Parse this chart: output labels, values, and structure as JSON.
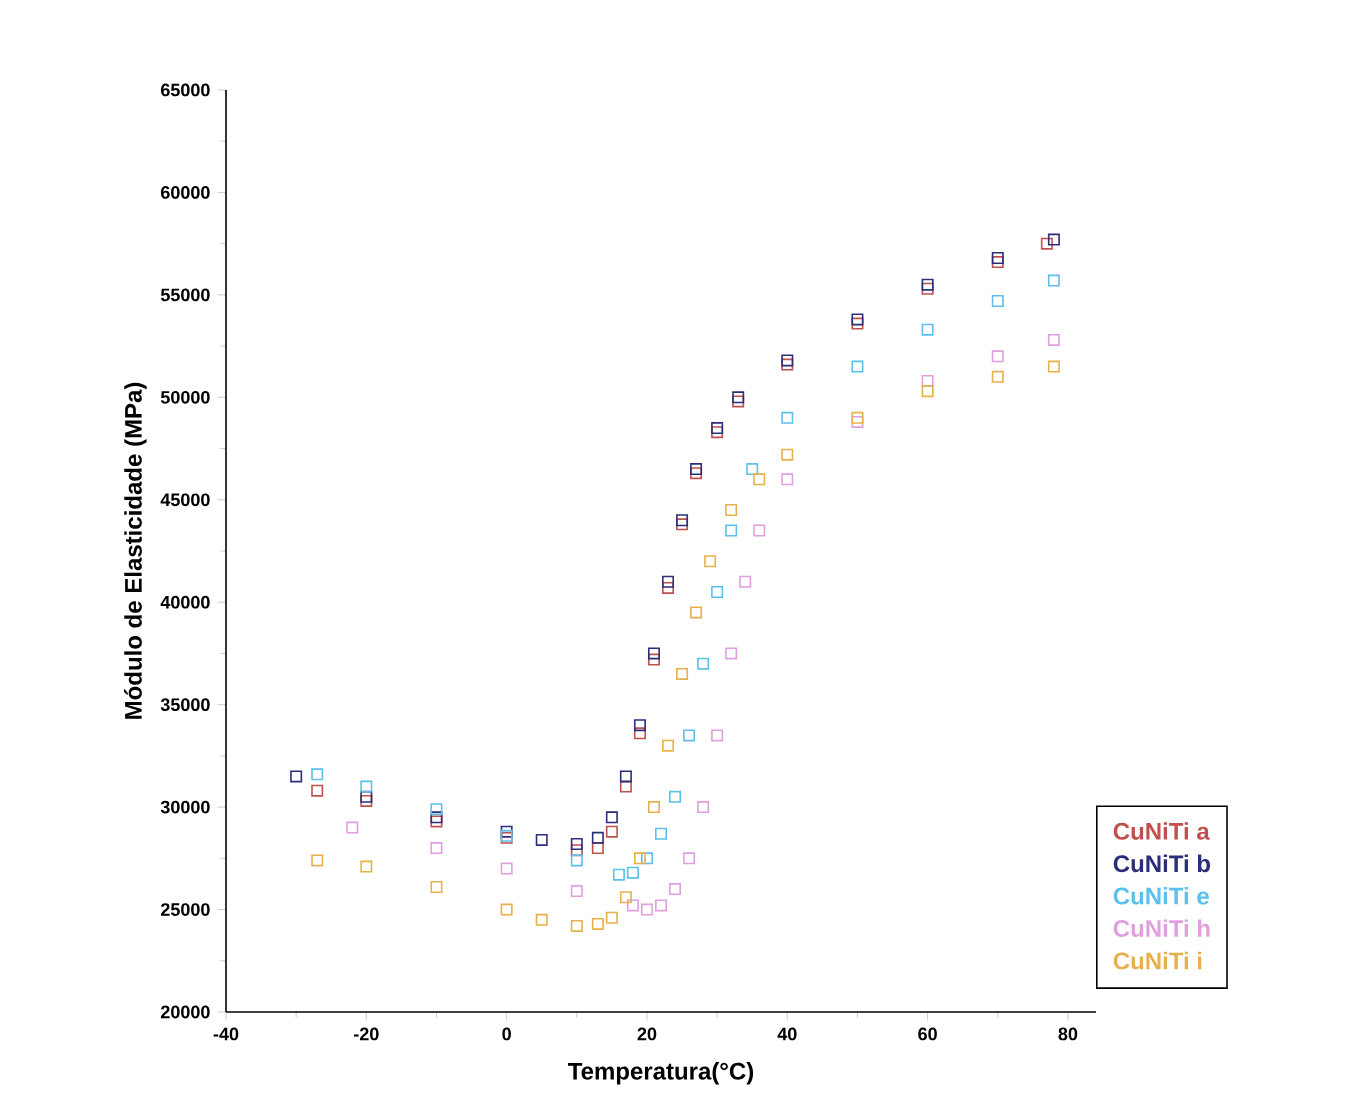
{
  "chart_data": {
    "type": "scatter",
    "xlabel": "Temperatura(°C)",
    "ylabel": "Módulo de Elasticidade (MPa)",
    "xlim": [
      -40,
      84
    ],
    "ylim": [
      20000,
      65000
    ],
    "xticks": [
      -40,
      -20,
      0,
      20,
      40,
      60,
      80
    ],
    "yticks": [
      20000,
      25000,
      30000,
      35000,
      40000,
      45000,
      50000,
      55000,
      60000,
      65000
    ],
    "marker": "square",
    "legend": "right",
    "series": [
      {
        "name": "CuNiTi a",
        "color": "#c0504d",
        "x": [
          -27,
          -20,
          -10,
          0,
          10,
          13,
          15,
          17,
          19,
          21,
          23,
          25,
          27,
          30,
          33,
          40,
          50,
          60,
          70,
          77
        ],
        "values": [
          30800,
          30300,
          29300,
          28500,
          27900,
          28000,
          28800,
          31000,
          33600,
          37200,
          40700,
          43800,
          46300,
          48300,
          49800,
          51600,
          53600,
          55300,
          56600,
          57500
        ]
      },
      {
        "name": "CuNiTi b",
        "color": "#2b2f7a",
        "x": [
          -30,
          -20,
          -10,
          0,
          5,
          10,
          13,
          15,
          17,
          19,
          21,
          23,
          25,
          27,
          30,
          33,
          40,
          50,
          60,
          70,
          78
        ],
        "values": [
          31500,
          30500,
          29500,
          28800,
          28400,
          28200,
          28500,
          29500,
          31500,
          34000,
          37500,
          41000,
          44000,
          46500,
          48500,
          50000,
          51800,
          53800,
          55500,
          56800,
          57700
        ]
      },
      {
        "name": "CuNiTi e",
        "color": "#5bc0eb",
        "x": [
          -27,
          -20,
          -10,
          0,
          10,
          16,
          18,
          20,
          22,
          24,
          26,
          28,
          30,
          32,
          35,
          40,
          50,
          60,
          70,
          78
        ],
        "values": [
          31600,
          31000,
          29900,
          28600,
          27400,
          26700,
          26800,
          27500,
          28700,
          30500,
          33500,
          37000,
          40500,
          43500,
          46500,
          49000,
          51500,
          53300,
          54700,
          55700
        ]
      },
      {
        "name": "CuNiTi h",
        "color": "#e0a0e0",
        "x": [
          -22,
          -10,
          0,
          10,
          18,
          20,
          22,
          24,
          26,
          28,
          30,
          32,
          34,
          36,
          40,
          50,
          60,
          70,
          78
        ],
        "values": [
          29000,
          28000,
          27000,
          25900,
          25200,
          25000,
          25200,
          26000,
          27500,
          30000,
          33500,
          37500,
          41000,
          43500,
          46000,
          48800,
          50800,
          52000,
          52800
        ]
      },
      {
        "name": "CuNiTi i",
        "color": "#e8b04a",
        "x": [
          -27,
          -20,
          -10,
          0,
          5,
          10,
          13,
          15,
          17,
          19,
          21,
          23,
          25,
          27,
          29,
          32,
          36,
          40,
          50,
          60,
          70,
          78
        ],
        "values": [
          27400,
          27100,
          26100,
          25000,
          24500,
          24200,
          24300,
          24600,
          25600,
          27500,
          30000,
          33000,
          36500,
          39500,
          42000,
          44500,
          46000,
          47200,
          49000,
          50300,
          51000,
          51500
        ]
      }
    ]
  }
}
